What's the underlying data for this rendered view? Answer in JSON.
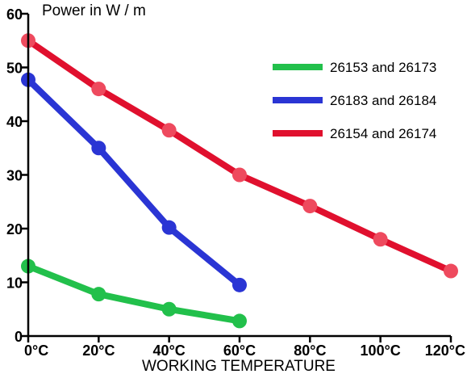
{
  "chart_data": {
    "type": "line",
    "title": "",
    "xlabel": "WORKING TEMPERATURE",
    "ylabel": "Power in W / m",
    "categories": [
      "0°C",
      "20°C",
      "40°C",
      "60°C",
      "80°C",
      "100°C",
      "120°C"
    ],
    "x": [
      0,
      20,
      40,
      60,
      80,
      100,
      120
    ],
    "xlim": [
      0,
      120
    ],
    "ylim": [
      0,
      60
    ],
    "yticks": [
      "0",
      "10",
      "20",
      "30",
      "40",
      "50",
      "60"
    ],
    "grid": false,
    "legend_position": "top-right",
    "series": [
      {
        "name": "26153 and 26173",
        "color": "#22c04b",
        "marker_color": "#22c04b",
        "x": [
          0,
          20,
          40,
          60
        ],
        "values": [
          13,
          7.8,
          5,
          2.8
        ]
      },
      {
        "name": "26183 and 26184",
        "color": "#2a35d4",
        "marker_color": "#2a35d4",
        "x": [
          0,
          20,
          40,
          60
        ],
        "values": [
          47.7,
          35,
          20.2,
          9.5
        ]
      },
      {
        "name": "26154 and 26174",
        "color": "#e0102e",
        "marker_color": "#ee4a5e",
        "x": [
          0,
          20,
          40,
          60,
          80,
          100,
          120
        ],
        "values": [
          55,
          46,
          38.3,
          30,
          24.2,
          18,
          12.1
        ]
      }
    ]
  }
}
